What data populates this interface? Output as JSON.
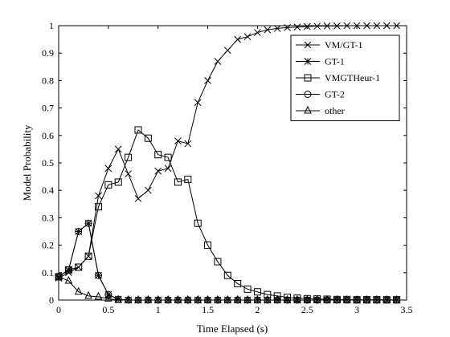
{
  "chart_data": {
    "type": "line",
    "xlabel": "Time Elapsed (s)",
    "ylabel": "Model Probability",
    "xlim": [
      0,
      3.5
    ],
    "ylim": [
      0,
      1
    ],
    "xticks": [
      "0",
      "0.5",
      "1",
      "1.5",
      "2",
      "2.5",
      "3",
      "3.5"
    ],
    "yticks": [
      "0",
      "0.1",
      "0.2",
      "0.3",
      "0.4",
      "0.5",
      "0.6",
      "0.7",
      "0.8",
      "0.9",
      "1"
    ],
    "grid": false,
    "legend_position": "top-right",
    "series": [
      {
        "name": "VM/GT-1",
        "marker": "x",
        "x": [
          0,
          0.1,
          0.2,
          0.3,
          0.4,
          0.5,
          0.6,
          0.7,
          0.8,
          0.9,
          1.0,
          1.1,
          1.2,
          1.3,
          1.4,
          1.5,
          1.6,
          1.7,
          1.8,
          1.9,
          2.0,
          2.1,
          2.2,
          2.3,
          2.4,
          2.5,
          2.6,
          2.7,
          2.8,
          2.9,
          3.0,
          3.1,
          3.2,
          3.3,
          3.4
        ],
        "y": [
          0.08,
          0.1,
          0.12,
          0.16,
          0.38,
          0.48,
          0.55,
          0.46,
          0.37,
          0.4,
          0.47,
          0.48,
          0.58,
          0.57,
          0.72,
          0.8,
          0.87,
          0.91,
          0.95,
          0.96,
          0.975,
          0.985,
          0.99,
          0.993,
          0.995,
          0.997,
          0.998,
          0.999,
          0.999,
          1.0,
          1.0,
          1.0,
          1.0,
          1.0,
          1.0
        ]
      },
      {
        "name": "GT-1",
        "marker": "asterisk",
        "x": [
          0,
          0.1,
          0.2,
          0.3,
          0.4,
          0.5,
          0.6,
          0.7,
          0.8,
          0.9,
          1.0,
          1.1,
          1.2,
          1.3,
          1.4,
          1.5,
          1.6,
          1.7,
          1.8,
          1.9,
          2.0,
          2.1,
          2.2,
          2.3,
          2.4,
          2.5,
          2.6,
          2.7,
          2.8,
          2.9,
          3.0,
          3.1,
          3.2,
          3.3,
          3.4
        ],
        "y": [
          0.085,
          0.11,
          0.25,
          0.28,
          0.09,
          0.02,
          0.003,
          0,
          0,
          0,
          0,
          0,
          0,
          0,
          0,
          0,
          0,
          0,
          0,
          0,
          0,
          0,
          0,
          0,
          0,
          0,
          0,
          0,
          0,
          0,
          0,
          0,
          0,
          0,
          0
        ]
      },
      {
        "name": "VMGTHeur-1",
        "marker": "square",
        "x": [
          0,
          0.1,
          0.2,
          0.3,
          0.4,
          0.5,
          0.6,
          0.7,
          0.8,
          0.9,
          1.0,
          1.1,
          1.2,
          1.3,
          1.4,
          1.5,
          1.6,
          1.7,
          1.8,
          1.9,
          2.0,
          2.1,
          2.2,
          2.3,
          2.4,
          2.5,
          2.6,
          2.7,
          2.8,
          2.9,
          3.0,
          3.1,
          3.2,
          3.3,
          3.4
        ],
        "y": [
          0.085,
          0.11,
          0.12,
          0.16,
          0.34,
          0.42,
          0.43,
          0.52,
          0.62,
          0.59,
          0.53,
          0.52,
          0.43,
          0.44,
          0.28,
          0.2,
          0.14,
          0.09,
          0.06,
          0.04,
          0.03,
          0.02,
          0.015,
          0.01,
          0.007,
          0.005,
          0.004,
          0.003,
          0.002,
          0.002,
          0.001,
          0.001,
          0.001,
          0.001,
          0.001
        ]
      },
      {
        "name": "GT-2",
        "marker": "circle",
        "x": [
          0,
          0.1,
          0.2,
          0.3,
          0.4,
          0.5,
          0.6,
          0.7,
          0.8,
          0.9,
          1.0,
          1.1,
          1.2,
          1.3,
          1.4,
          1.5,
          1.6,
          1.7,
          1.8,
          1.9,
          2.0,
          2.1,
          2.2,
          2.3,
          2.4,
          2.5,
          2.6,
          2.7,
          2.8,
          2.9,
          3.0,
          3.1,
          3.2,
          3.3,
          3.4
        ],
        "y": [
          0.085,
          0.11,
          0.25,
          0.28,
          0.09,
          0.02,
          0.003,
          0,
          0,
          0,
          0,
          0,
          0,
          0,
          0,
          0,
          0,
          0,
          0,
          0,
          0,
          0,
          0,
          0,
          0,
          0,
          0,
          0,
          0,
          0,
          0,
          0,
          0,
          0,
          0
        ]
      },
      {
        "name": "other",
        "marker": "triangle",
        "x": [
          0,
          0.1,
          0.2,
          0.3,
          0.4,
          0.5,
          0.6,
          0.7,
          0.8,
          0.9,
          1.0,
          1.1,
          1.2,
          1.3,
          1.4,
          1.5,
          1.6,
          1.7,
          1.8,
          1.9,
          2.0,
          2.1,
          2.2,
          2.3,
          2.4,
          2.5,
          2.6,
          2.7,
          2.8,
          2.9,
          3.0,
          3.1,
          3.2,
          3.3,
          3.4
        ],
        "y": [
          0.085,
          0.07,
          0.03,
          0.015,
          0.012,
          0.005,
          0,
          0,
          0,
          0,
          0,
          0,
          0,
          0,
          0,
          0,
          0,
          0,
          0,
          0,
          0,
          0,
          0,
          0,
          0,
          0,
          0,
          0,
          0,
          0,
          0,
          0,
          0,
          0,
          0
        ]
      }
    ]
  }
}
